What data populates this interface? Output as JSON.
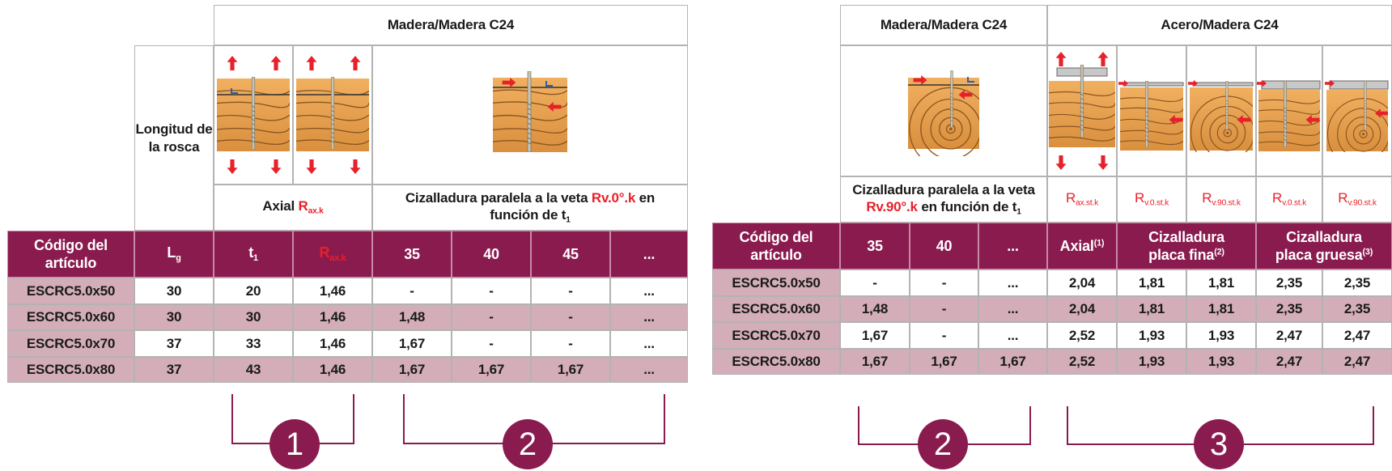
{
  "left_table": {
    "group_title": "Madera/Madera C24",
    "thread_label": "Longitud de la rosca",
    "axial_label": "Axial",
    "axial_symbol": "R",
    "axial_sub": "ax.k",
    "shear_label_a": "Cizalladura paralela a la veta",
    "shear_symbol": "Rv.0°.k",
    "shear_label_b": "en función de t",
    "shear_label_sub": "1",
    "header": {
      "code": "Código del artículo",
      "lg": "L",
      "lg_sub": "g",
      "t1": "t",
      "t1_sub": "1",
      "rax": "R",
      "rax_sub": "ax.k",
      "c35": "35",
      "c40": "40",
      "c45": "45",
      "more": "..."
    },
    "rows": [
      [
        "ESCRC5.0x50",
        "30",
        "20",
        "1,46",
        "-",
        "-",
        "-",
        "..."
      ],
      [
        "ESCRC5.0x60",
        "30",
        "30",
        "1,46",
        "1,48",
        "-",
        "-",
        "..."
      ],
      [
        "ESCRC5.0x70",
        "37",
        "33",
        "1,46",
        "1,67",
        "-",
        "-",
        "..."
      ],
      [
        "ESCRC5.0x80",
        "37",
        "43",
        "1,46",
        "1,67",
        "1,67",
        "1,67",
        "..."
      ]
    ],
    "badge1": "1",
    "badge2": "2"
  },
  "right_table": {
    "group_title_a": "Madera/Madera C24",
    "group_title_b": "Acero/Madera C24",
    "shear_label_a": "Cizalladura paralela a la veta",
    "shear_symbol": "Rv.90°.k",
    "shear_label_b": "en función de t",
    "shear_label_sub": "1",
    "sym_r": "R",
    "sym1_sub": "ax.st.k",
    "sym2_sub": "v.0.st.k",
    "sym3_sub": "v.90.st.k",
    "sym4_sub": "v.0.st.k",
    "sym5_sub": "v.90.st.k",
    "header": {
      "code": "Código del artículo",
      "c35": "35",
      "c40": "40",
      "more": "...",
      "axial": "Axial",
      "axial_sup": "(1)",
      "thin": "Cizalladura placa fina",
      "thin_sup": "(2)",
      "thick": "Cizalladura placa gruesa",
      "thick_sup": "(3)"
    },
    "rows": [
      [
        "ESCRC5.0x50",
        "-",
        "-",
        "...",
        "2,04",
        "1,81",
        "1,81",
        "2,35",
        "2,35"
      ],
      [
        "ESCRC5.0x60",
        "1,48",
        "-",
        "...",
        "2,04",
        "1,81",
        "1,81",
        "2,35",
        "2,35"
      ],
      [
        "ESCRC5.0x70",
        "1,67",
        "-",
        "...",
        "2,52",
        "1,93",
        "1,93",
        "2,47",
        "2,47"
      ],
      [
        "ESCRC5.0x80",
        "1,67",
        "1,67",
        "1,67",
        "2,52",
        "1,93",
        "1,93",
        "2,47",
        "2,47"
      ]
    ],
    "badge2": "2",
    "badge3": "3"
  },
  "colors": {
    "header_bg": "#8a1b4e",
    "row_alt": "#d3aeb8",
    "accent_red": "#e8202a",
    "wood": "#e9a553"
  },
  "icons": [
    "wood-axial-icon",
    "wood-shear-parallel-icon",
    "wood-shear-perpendicular-icon",
    "steel-plate-axial-icon",
    "steel-plate-shear-icon"
  ]
}
